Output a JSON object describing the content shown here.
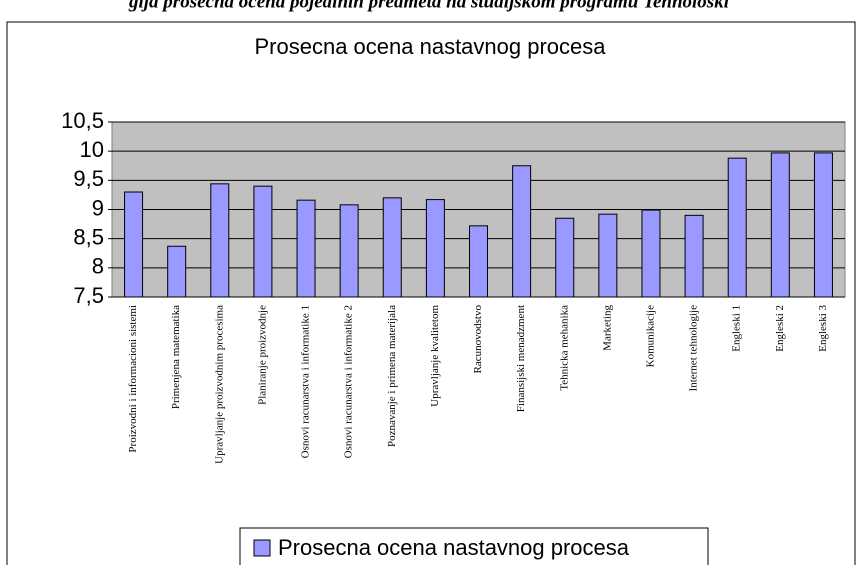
{
  "caption": "gija prosečna ocena pojedinih predmeta na studijskom programu Tehnološki",
  "chart_data": {
    "type": "bar",
    "title": "Prosecna ocena nastavnog procesa",
    "categories": [
      "Proizvodni i informacioni sistemi",
      "Primenjena matematika",
      "Upravljanje proizvodnim procesima",
      "Planiranje proizvodnje",
      "Osnovi racunarstva i informatike 1",
      "Osnovi racunarstva i informatike 2",
      "Poznavanje i primena materijala",
      "Upravljanje kvalitetom",
      "Racunovodstvo",
      "Finansijski menadzment",
      "Tehnicka mehanika",
      "Marketing",
      "Komunikacije",
      "Internet tehnologije",
      "Engleski 1",
      "Engleski 2",
      "Engleski 3"
    ],
    "series": [
      {
        "name": "Prosecna ocena nastavnog procesa",
        "color": "#9999ff",
        "values": [
          9.3,
          8.37,
          9.44,
          9.4,
          9.16,
          9.08,
          9.2,
          9.17,
          8.72,
          9.75,
          8.85,
          8.92,
          8.99,
          8.9,
          9.88,
          9.97,
          9.97
        ]
      }
    ],
    "ylim": [
      7.5,
      10.5
    ],
    "yticks": [
      {
        "value": 7.5,
        "label": "7,5"
      },
      8,
      {
        "value": 8.5,
        "label": "8,5"
      },
      9,
      {
        "value": 9.5,
        "label": "9,5"
      },
      10,
      {
        "value": 10.5,
        "label": "10,5"
      }
    ],
    "grid": true,
    "legend": "bottom"
  }
}
